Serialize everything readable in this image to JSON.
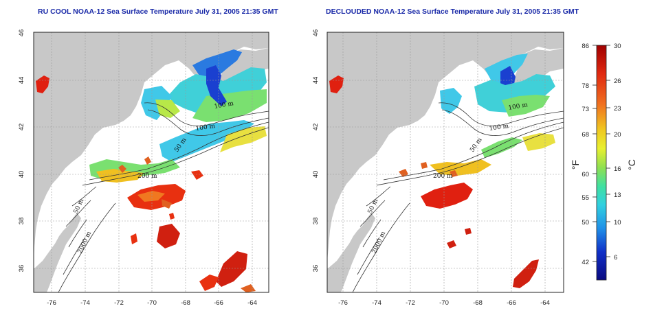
{
  "left_panel": {
    "title": "RU COOL NOAA-12 Sea Surface Temperature July 31, 2005 21:35 GMT",
    "contour_labels": [
      "100 m",
      "100 m",
      "50 m",
      "200 m",
      "50 m",
      "2000 m"
    ]
  },
  "right_panel": {
    "title": "DECLOUDED NOAA-12 Sea Surface Temperature July 31, 2005 21:35 GMT",
    "contour_labels": [
      "100 m",
      "100 m",
      "50 m",
      "200 m",
      "50 m",
      "2000 m"
    ]
  },
  "x_ticks": [
    "-76",
    "-74",
    "-72",
    "-70",
    "-68",
    "-66",
    "-64"
  ],
  "y_ticks": [
    "46",
    "44",
    "42",
    "40",
    "38",
    "36"
  ],
  "colorbar": {
    "fahrenheit_ticks": [
      "86",
      "78",
      "73",
      "68",
      "60",
      "55",
      "50",
      "42"
    ],
    "celsius_ticks": [
      "30",
      "26",
      "23",
      "20",
      "16",
      "13",
      "10",
      "6"
    ],
    "fahrenheit_unit": "°F",
    "celsius_unit": "°C",
    "colors": [
      "#b00000",
      "#e83010",
      "#f07820",
      "#f0d020",
      "#a8e040",
      "#40e0a0",
      "#30c8e8",
      "#2070e0",
      "#1020c0",
      "#0a0a80"
    ]
  },
  "colors": {
    "land": "#c8c8c8",
    "ocean": "#ffffff",
    "title": "#1a2aa8",
    "grid": "#999999"
  }
}
